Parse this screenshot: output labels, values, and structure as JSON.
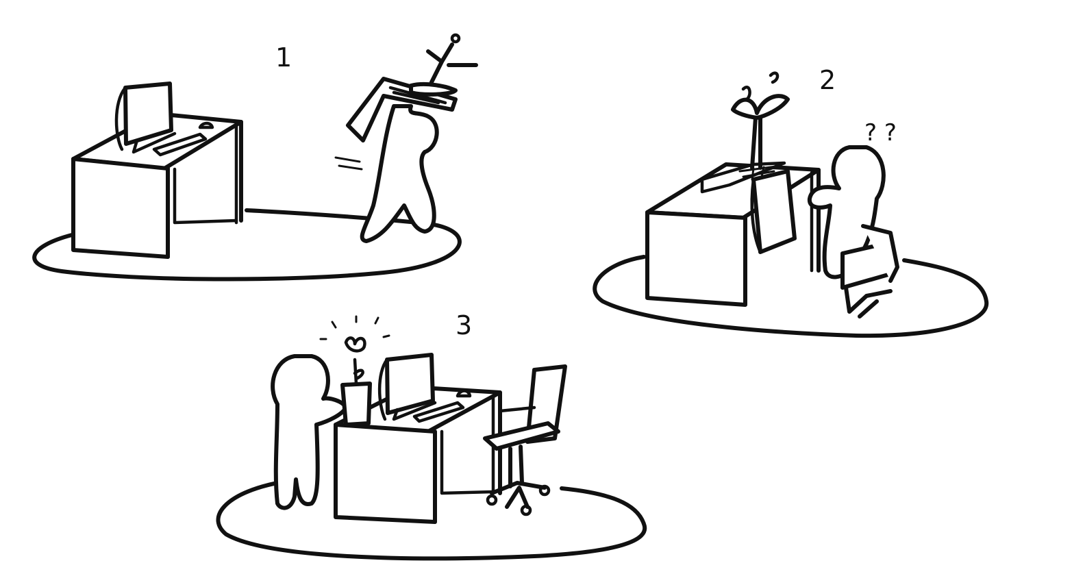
{
  "panels": [
    {
      "number": "1"
    },
    {
      "number": "2"
    },
    {
      "number": "3"
    }
  ],
  "panel2_marks": "? ?",
  "colors": {
    "ink": "#111111",
    "background": "#ffffff"
  }
}
